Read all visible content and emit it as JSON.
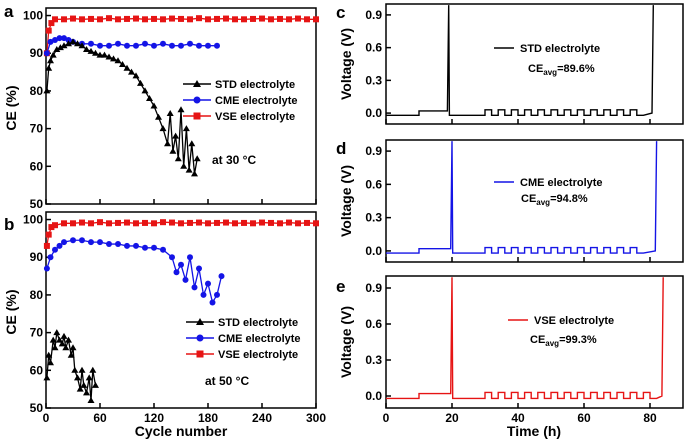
{
  "chart_data": [
    {
      "panel": "a",
      "type": "scatter",
      "xlabel": "",
      "ylabel": "CE (%)",
      "xlim": [
        0,
        300
      ],
      "ylim": [
        50,
        102
      ],
      "yticks": [
        50,
        60,
        70,
        80,
        90,
        100
      ],
      "annotation": "at 30 °C",
      "series": [
        {
          "name": "STD electrolyte",
          "color": "#000000",
          "marker": "triangle",
          "x": [
            1,
            3,
            5,
            8,
            12,
            16,
            20,
            25,
            30,
            35,
            40,
            45,
            50,
            55,
            60,
            65,
            70,
            75,
            80,
            85,
            90,
            95,
            100,
            105,
            110,
            115,
            120,
            125,
            130,
            135,
            138,
            141,
            144,
            147,
            150,
            153,
            156,
            159,
            162,
            165,
            168
          ],
          "y": [
            80,
            86,
            88,
            89.5,
            91,
            91.5,
            92,
            92.5,
            93,
            92.5,
            92,
            91,
            90.5,
            90,
            89.5,
            89.5,
            89,
            88.5,
            88,
            87,
            86,
            85,
            84,
            82,
            80,
            78,
            76,
            73,
            70,
            66,
            74,
            64,
            68,
            62,
            75,
            60,
            70,
            59,
            66,
            58,
            62
          ]
        },
        {
          "name": "CME electrolyte",
          "color": "#1414e6",
          "marker": "circle",
          "x": [
            1,
            5,
            10,
            15,
            20,
            25,
            30,
            40,
            50,
            60,
            70,
            80,
            90,
            100,
            110,
            120,
            130,
            140,
            150,
            160,
            170,
            180,
            190
          ],
          "y": [
            90,
            93,
            93.5,
            94,
            94,
            93.5,
            93,
            92.5,
            92.5,
            92,
            92,
            92.5,
            92,
            92,
            92.5,
            92,
            92.5,
            92,
            92,
            92.5,
            92,
            92,
            92
          ]
        },
        {
          "name": "VSE electrolyte",
          "color": "#e61414",
          "marker": "square",
          "x": [
            1,
            3,
            6,
            10,
            20,
            30,
            40,
            50,
            60,
            70,
            80,
            90,
            100,
            110,
            120,
            130,
            140,
            150,
            160,
            170,
            180,
            190,
            200,
            210,
            220,
            230,
            240,
            250,
            260,
            270,
            280,
            290,
            300
          ],
          "y": [
            90,
            96,
            98,
            99,
            99,
            99.2,
            99,
            99.1,
            99,
            99.3,
            99,
            99.1,
            99.2,
            99,
            99.1,
            99,
            99.2,
            99.1,
            99,
            99.3,
            99,
            99.1,
            99.2,
            99,
            99,
            99.1,
            99.2,
            99,
            99.1,
            99,
            99.2,
            99,
            99
          ]
        }
      ]
    },
    {
      "panel": "b",
      "type": "scatter",
      "xlabel": "Cycle number",
      "ylabel": "CE (%)",
      "xlim": [
        0,
        300
      ],
      "ylim": [
        50,
        102
      ],
      "xticks": [
        0,
        60,
        120,
        180,
        240,
        300
      ],
      "yticks": [
        50,
        60,
        70,
        80,
        90,
        100
      ],
      "annotation": "at 50 °C",
      "series": [
        {
          "name": "STD electrolyte",
          "color": "#000000",
          "marker": "triangle",
          "x": [
            1,
            3,
            5,
            8,
            10,
            12,
            15,
            18,
            20,
            22,
            25,
            28,
            30,
            32,
            35,
            38,
            40,
            42,
            45,
            48,
            50,
            52,
            55
          ],
          "y": [
            58,
            64,
            62,
            68,
            66,
            70,
            68,
            67,
            69,
            66,
            68,
            64,
            66,
            60,
            58,
            55,
            60,
            56,
            54,
            58,
            52,
            60,
            56
          ]
        },
        {
          "name": "CME electrolyte",
          "color": "#1414e6",
          "marker": "circle",
          "x": [
            1,
            5,
            10,
            15,
            20,
            30,
            40,
            50,
            60,
            70,
            80,
            90,
            100,
            110,
            120,
            130,
            140,
            145,
            150,
            155,
            160,
            165,
            170,
            175,
            180,
            185,
            190,
            195
          ],
          "y": [
            87,
            90,
            92,
            93,
            94,
            94.5,
            94.5,
            94,
            94,
            93.5,
            93.5,
            93,
            93,
            92.5,
            92.5,
            92,
            90,
            86,
            88,
            84,
            90,
            82,
            87,
            80,
            83,
            78,
            80,
            85
          ]
        },
        {
          "name": "VSE electrolyte",
          "color": "#e61414",
          "marker": "square",
          "x": [
            1,
            3,
            6,
            10,
            20,
            30,
            40,
            50,
            60,
            70,
            80,
            90,
            100,
            110,
            120,
            130,
            140,
            150,
            160,
            170,
            180,
            190,
            200,
            210,
            220,
            230,
            240,
            250,
            260,
            270,
            280,
            290,
            300
          ],
          "y": [
            93,
            96,
            98,
            98.5,
            99,
            99,
            99.2,
            99,
            99.3,
            99,
            99.1,
            99.2,
            99,
            99.1,
            99,
            99.3,
            99.2,
            99,
            99.1,
            99.2,
            99,
            99.1,
            99.2,
            99,
            99.1,
            99,
            99.2,
            99.1,
            99,
            99.2,
            99,
            99.1,
            99
          ]
        }
      ]
    },
    {
      "panel": "c",
      "type": "line",
      "ylabel": "Voltage (V)",
      "xlim": [
        0,
        90
      ],
      "ylim": [
        -0.1,
        1.0
      ],
      "yticks": [
        0.0,
        0.3,
        0.6,
        0.9
      ],
      "series": [
        {
          "name": "STD electrolyte",
          "color": "#000000",
          "ce_avg": "89.6%"
        }
      ],
      "annotation": {
        "label": "STD electrolyte",
        "ce_prefix": "CE",
        "ce_sub": "avg",
        "ce_value": "=89.6%"
      }
    },
    {
      "panel": "d",
      "type": "line",
      "ylabel": "Voltage (V)",
      "xlim": [
        0,
        90
      ],
      "ylim": [
        -0.1,
        1.0
      ],
      "yticks": [
        0.0,
        0.3,
        0.6,
        0.9
      ],
      "series": [
        {
          "name": "CME electrolyte",
          "color": "#1414e6",
          "ce_avg": "94.8%"
        }
      ],
      "annotation": {
        "label": "CME electrolyte",
        "ce_prefix": "CE",
        "ce_sub": "avg",
        "ce_value": "=94.8%"
      }
    },
    {
      "panel": "e",
      "type": "line",
      "xlabel": "Time (h)",
      "ylabel": "Voltage (V)",
      "xlim": [
        0,
        90
      ],
      "ylim": [
        -0.1,
        1.0
      ],
      "xticks": [
        0,
        20,
        40,
        60,
        80
      ],
      "yticks": [
        0.0,
        0.3,
        0.6,
        0.9
      ],
      "series": [
        {
          "name": "VSE electrolyte",
          "color": "#e61414",
          "ce_avg": "99.3%"
        }
      ],
      "annotation": {
        "label": "VSE electrolyte",
        "ce_prefix": "CE",
        "ce_sub": "avg",
        "ce_value": "=99.3%"
      }
    }
  ],
  "voltage_trace": {
    "baseline": -0.02,
    "step1": 0.0,
    "step2": 0.02,
    "spike_top": 0.99,
    "step_start_h": 10,
    "cycle_start_h": 20,
    "cycle_amplitude": 0.05,
    "cycle_period_h": 4,
    "end_h": {
      "c": 81,
      "d": 82,
      "e": 84
    },
    "start_h": {
      "c": 19,
      "d": 20,
      "e": 20
    }
  }
}
